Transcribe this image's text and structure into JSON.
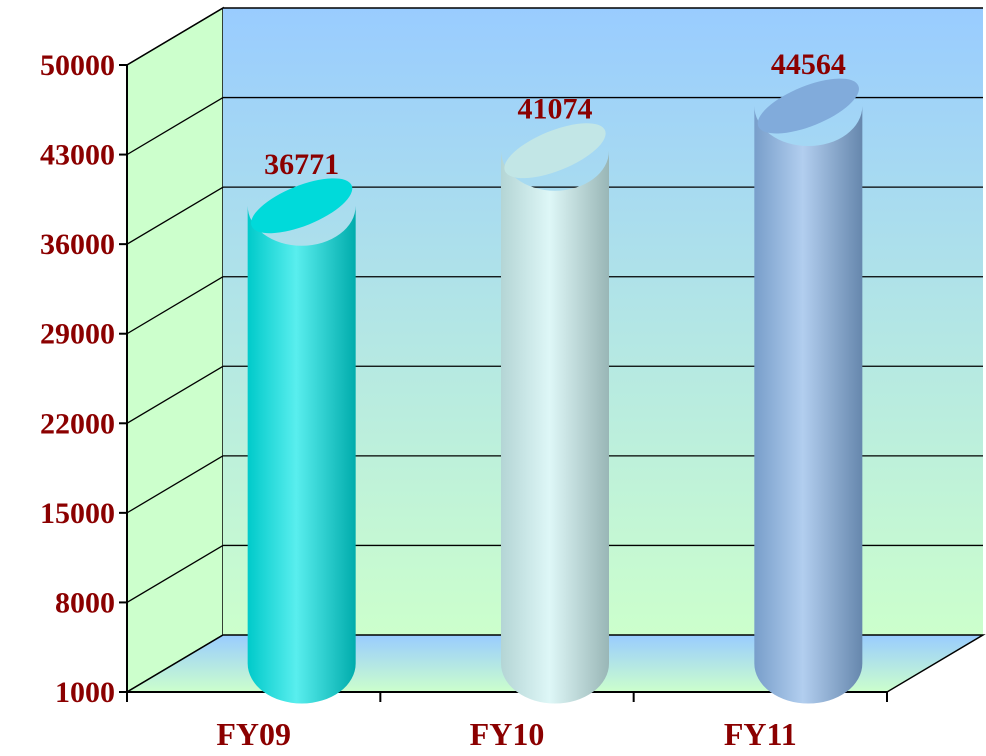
{
  "chart_data": {
    "type": "bar",
    "bar_style": "3d-cylinder",
    "categories": [
      "FY09",
      "FY10",
      "FY11"
    ],
    "values": [
      36771,
      41074,
      44564
    ],
    "data_labels": [
      "36771",
      "41074",
      "44564"
    ],
    "title": "",
    "xlabel": "",
    "ylabel": "",
    "ylim": [
      1000,
      50000
    ],
    "yticks": [
      1000,
      8000,
      15000,
      22000,
      29000,
      36000,
      43000,
      50000
    ],
    "ytick_labels": [
      "1000",
      "8000",
      "15000",
      "22000",
      "29000",
      "36000",
      "43000",
      "50000"
    ],
    "grid": true,
    "legend": "none",
    "colors": {
      "label_text": "#8B0000",
      "back_wall_top": "#99CCFF",
      "back_wall_bottom": "#CCFFCC",
      "side_wall": "#CCFFCC",
      "floor": "#CCFFCC",
      "bars": [
        "#00E5E5",
        "#CCF2F2",
        "#88B4E6"
      ]
    }
  }
}
